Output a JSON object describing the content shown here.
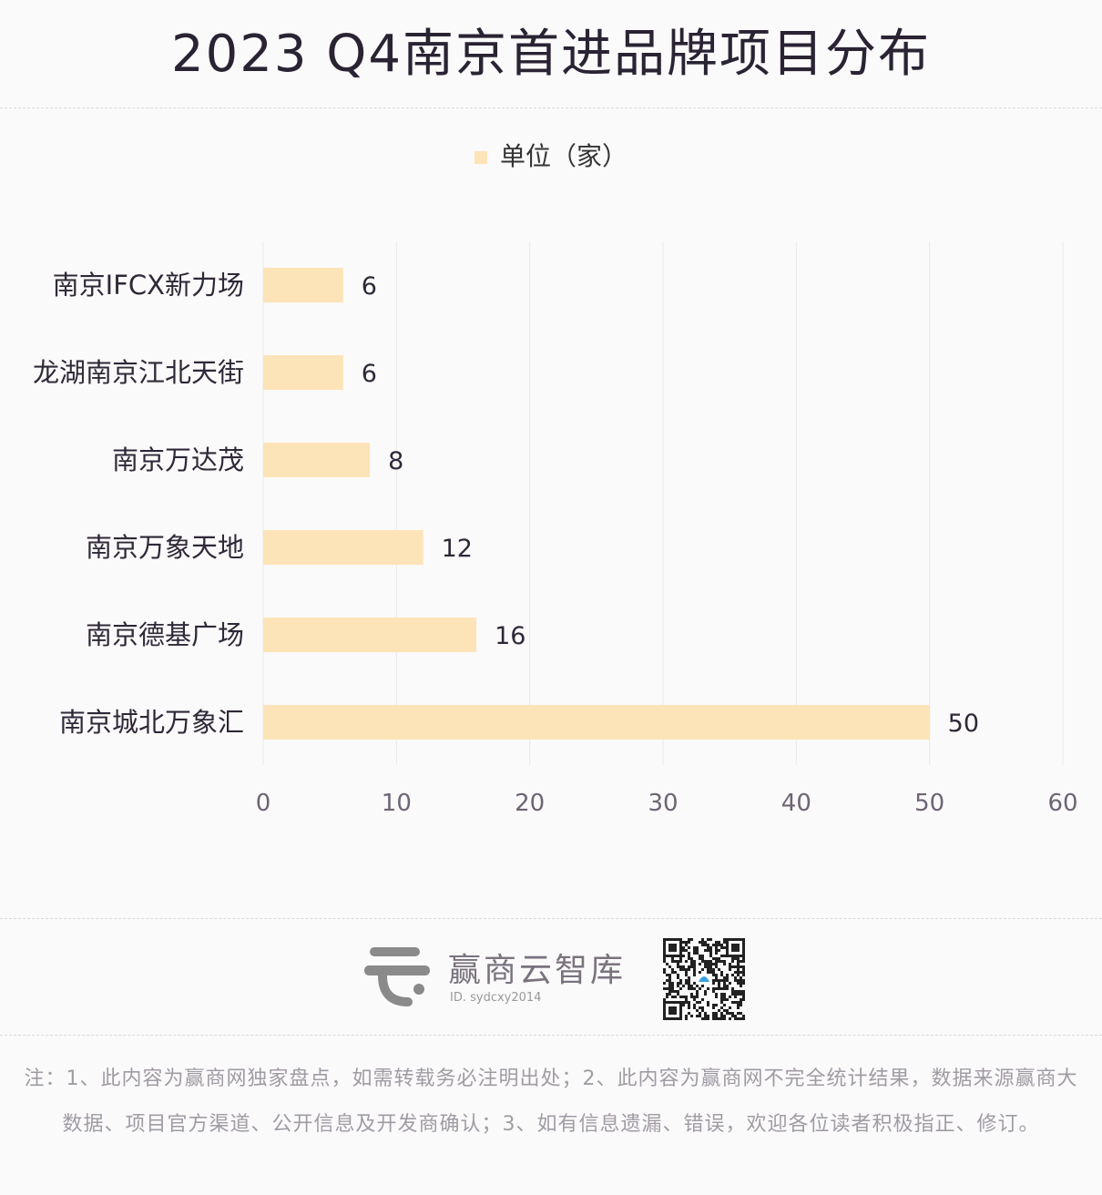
{
  "title": "2023 Q4南京首进品牌项目分布",
  "chart_data": {
    "type": "bar",
    "orientation": "horizontal",
    "title": "2023 Q4南京首进品牌项目分布",
    "categories": [
      "南京IFCX新力场",
      "龙湖南京江北天街",
      "南京万达茂",
      "南京万象天地",
      "南京德基广场",
      "南京城北万象汇"
    ],
    "series": [
      {
        "name": "单位（家）",
        "values": [
          6,
          6,
          8,
          12,
          16,
          50
        ]
      }
    ],
    "xlim": [
      0,
      60
    ],
    "xticks": [
      "0",
      "10",
      "20",
      "30",
      "40",
      "50",
      "60"
    ],
    "xlabel": "",
    "ylabel": "",
    "grid": true,
    "legend_position": "top-center",
    "bar_color": "#fde3b8"
  },
  "legend_label": "单位（家）",
  "brand": {
    "name": "赢商云智库",
    "id": "ID. sydcxy2014"
  },
  "note": "注：1、此内容为赢商网独家盘点，如需转载务必注明出处；2、此内容为赢商网不完全统计结果，数据来源赢商大数据、项目官方渠道、公开信息及开发商确认；3、如有信息遗漏、错误，欢迎各位读者积极指正、修订。"
}
